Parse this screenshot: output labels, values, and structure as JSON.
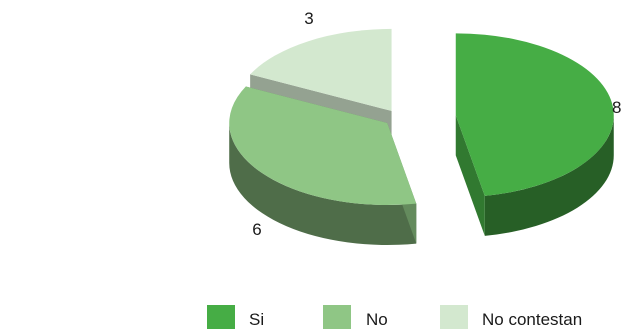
{
  "chart_data": {
    "type": "pie",
    "style": "3d-exploded",
    "categories": [
      "Si",
      "No",
      "No contestan"
    ],
    "values": [
      8,
      6,
      3
    ],
    "colors": {
      "Si": "#46ad45",
      "No": "#8fc685",
      "No contestan": "#d3e8cf"
    },
    "data_labels": [
      "8",
      "6",
      "3"
    ],
    "legend": {
      "position": "bottom",
      "items": [
        "Si",
        "No",
        "No contestan"
      ]
    }
  }
}
